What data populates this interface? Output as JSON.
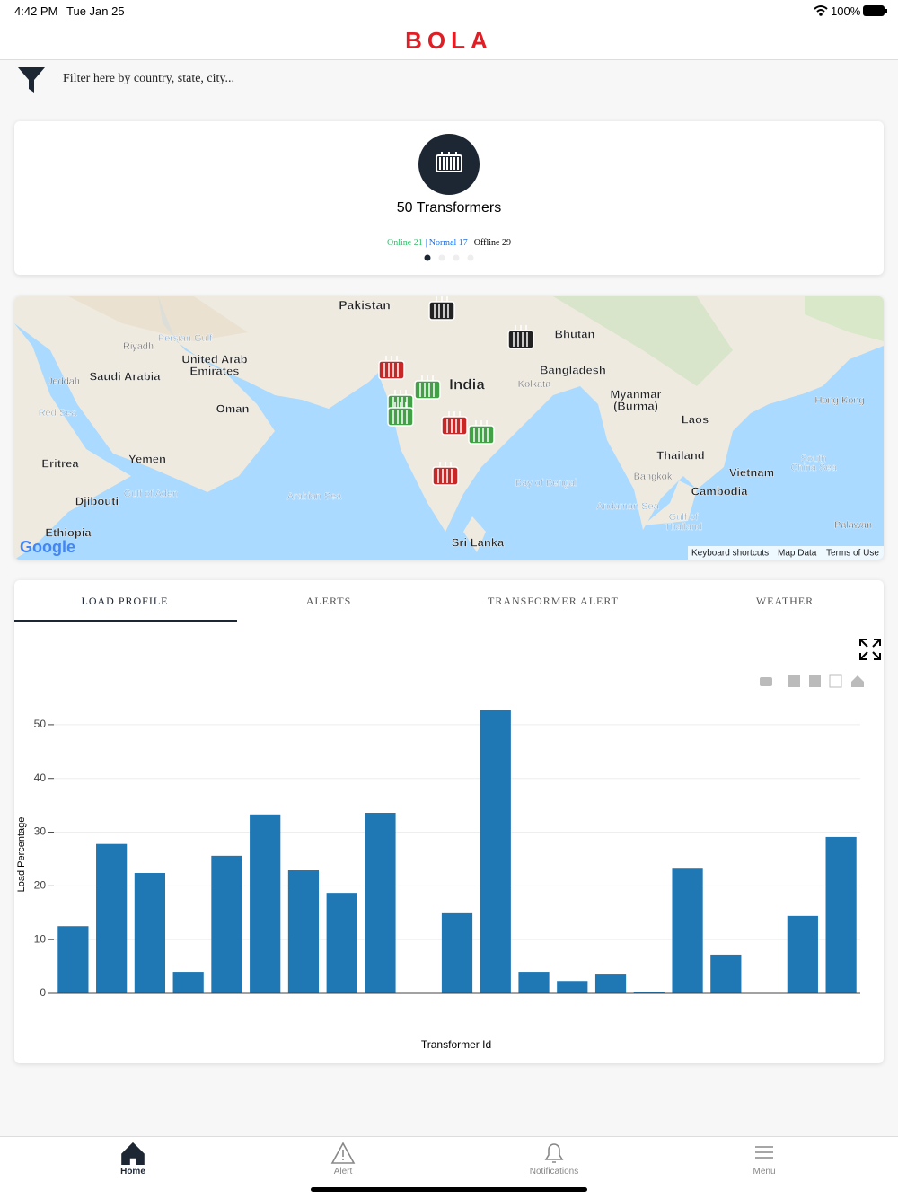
{
  "status_bar": {
    "time": "4:42 PM",
    "date": "Tue Jan 25",
    "battery": "100%"
  },
  "header": {
    "logo": "BOLA"
  },
  "filter": {
    "placeholder": "Filter here by country, state, city..."
  },
  "summary": {
    "title": "50 Transformers",
    "online": "Online 21",
    "normal": "Normal 17",
    "offline": "Offline 29",
    "separator": "|"
  },
  "map": {
    "labels": [
      "Pakistan",
      "Bhutan",
      "India",
      "Bangladesh",
      "Kolkata",
      "Myanmar",
      "(Burma)",
      "Laos",
      "Thailand",
      "Vietnam",
      "Cambodia",
      "Hong Kong",
      "South",
      "China Sea",
      "Bangkok",
      "Bay of Bengal",
      "Andaman Sea",
      "Gulf of",
      "Thailand",
      "Palawan",
      "Sri Lanka",
      "Arabian Sea",
      "Gulf of Aden",
      "Djibouti",
      "Yemen",
      "Eritrea",
      "Ethiopia",
      "Oman",
      "United Arab",
      "Emirates",
      "Saudi Arabia",
      "Riyadh",
      "Jeddah",
      "Red Sea",
      "Persian Gulf"
    ],
    "attribution": "Google",
    "footer_links": [
      "Keyboard shortcuts",
      "Map Data",
      "Terms of Use"
    ]
  },
  "tabs": [
    "LOAD PROFILE",
    "ALERTS",
    "TRANSFORMER ALERT",
    "WEATHER"
  ],
  "chart_data": {
    "type": "bar",
    "ylabel": "Load Percentage",
    "xlabel": "Transformer Id",
    "categories": [
      null,
      null,
      null,
      null,
      null,
      null,
      null,
      null,
      null,
      null,
      null,
      null,
      null,
      null,
      null,
      null,
      null,
      null,
      null,
      null,
      null
    ],
    "values": [
      12.5,
      27.8,
      22.4,
      4.0,
      25.6,
      33.3,
      22.9,
      18.7,
      33.6,
      null,
      14.9,
      52.7,
      4.0,
      2.3,
      3.5,
      0.3,
      23.2,
      7.2,
      null,
      14.4,
      29.1
    ],
    "color": "#1f77b4",
    "ylim": [
      0,
      55
    ],
    "yticks": [
      0,
      10,
      20,
      30,
      40,
      50
    ],
    "grid": true
  },
  "bottom_nav": [
    "Home",
    "Alert",
    "Notifications",
    "Menu"
  ]
}
